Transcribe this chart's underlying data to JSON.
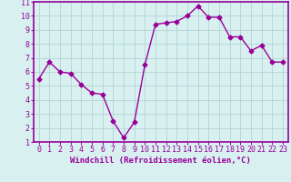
{
  "x": [
    0,
    1,
    2,
    3,
    4,
    5,
    6,
    7,
    8,
    9,
    10,
    11,
    12,
    13,
    14,
    15,
    16,
    17,
    18,
    19,
    20,
    21,
    22,
    23
  ],
  "y": [
    5.5,
    6.7,
    6.0,
    5.9,
    5.1,
    4.5,
    4.4,
    2.5,
    1.3,
    2.4,
    6.5,
    9.4,
    9.5,
    9.6,
    10.0,
    10.7,
    9.9,
    9.9,
    8.5,
    8.5,
    7.5,
    7.9,
    6.7,
    6.7
  ],
  "line_color": "#990099",
  "marker": "D",
  "markersize": 2.5,
  "linewidth": 1.0,
  "bg_color": "#d8f0f0",
  "grid_color": "#b8d8d8",
  "xlabel": "Windchill (Refroidissement éolien,°C)",
  "xlim": [
    -0.5,
    23.5
  ],
  "ylim": [
    1,
    11
  ],
  "yticks": [
    1,
    2,
    3,
    4,
    5,
    6,
    7,
    8,
    9,
    10,
    11
  ],
  "xticks": [
    0,
    1,
    2,
    3,
    4,
    5,
    6,
    7,
    8,
    9,
    10,
    11,
    12,
    13,
    14,
    15,
    16,
    17,
    18,
    19,
    20,
    21,
    22,
    23
  ],
  "tick_color": "#990099",
  "label_color": "#990099",
  "axis_color": "#990099",
  "xlabel_fontsize": 6.5,
  "tick_fontsize": 6.0,
  "spine_color": "#990099"
}
